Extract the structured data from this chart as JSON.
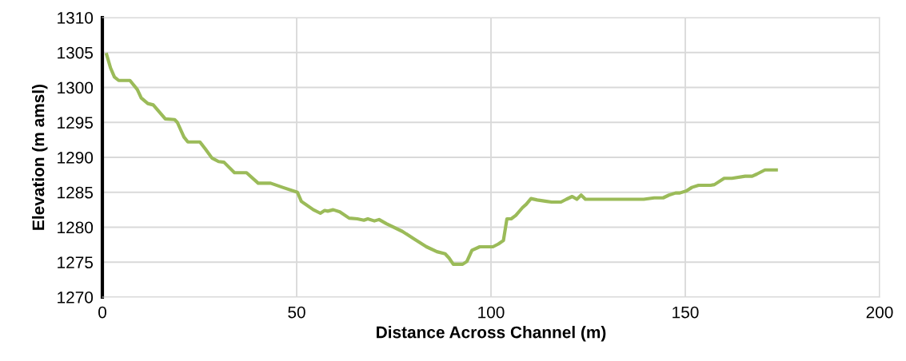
{
  "chart_data": {
    "type": "line",
    "xlabel": "Distance Across Channel (m)",
    "ylabel": "Elevation (m amsl)",
    "xlim": [
      0,
      200
    ],
    "xticks": [
      0,
      50,
      100,
      150,
      200
    ],
    "ylim": [
      1270,
      1310
    ],
    "yticks": [
      1270,
      1275,
      1280,
      1285,
      1290,
      1295,
      1300,
      1305,
      1310
    ],
    "grid": true,
    "series": [
      {
        "color": "#9bbb59",
        "x": [
          1.1,
          2.1,
          3.1,
          4.2,
          7.1,
          9.0,
          10.0,
          11.7,
          13.1,
          16.2,
          18.6,
          19.3,
          21.0,
          22.0,
          25.1,
          26.5,
          28.2,
          29.9,
          31.3,
          34.0,
          37.1,
          40.1,
          43.3,
          46.4,
          50.2,
          51.2,
          54.3,
          56.1,
          57.2,
          58.0,
          59.4,
          61.1,
          63.5,
          65.6,
          67.3,
          68.3,
          70.0,
          71.2,
          73.1,
          77.2,
          80.0,
          83.4,
          86.1,
          88.2,
          89.2,
          90.3,
          92.7,
          93.8,
          95.1,
          97.1,
          100.5,
          101.9,
          103.2,
          104.1,
          105.2,
          106.4,
          108.1,
          109.1,
          110.3,
          111.9,
          114.3,
          115.6,
          118.0,
          119.4,
          120.9,
          122.1,
          123.2,
          124.3,
          139.3,
          142.0,
          144.3,
          145.8,
          147.5,
          148.6,
          150.3,
          151.7,
          153.4,
          156.5,
          157.5,
          160.0,
          162.0,
          165.4,
          167.2,
          168.4,
          170.5,
          173.4
        ],
        "values": [
          1304.7,
          1302.8,
          1301.5,
          1301.0,
          1301.0,
          1299.7,
          1298.5,
          1297.7,
          1297.5,
          1295.5,
          1295.4,
          1295.0,
          1292.9,
          1292.2,
          1292.2,
          1291.2,
          1289.9,
          1289.4,
          1289.3,
          1287.8,
          1287.8,
          1286.3,
          1286.3,
          1285.7,
          1285.0,
          1283.7,
          1282.5,
          1282.0,
          1282.4,
          1282.3,
          1282.5,
          1282.2,
          1281.3,
          1281.2,
          1281.0,
          1281.2,
          1280.9,
          1281.1,
          1280.5,
          1279.4,
          1278.4,
          1277.2,
          1276.5,
          1276.2,
          1275.6,
          1274.7,
          1274.7,
          1275.1,
          1276.7,
          1277.2,
          1277.2,
          1277.6,
          1278.1,
          1281.2,
          1281.2,
          1281.7,
          1282.8,
          1283.3,
          1284.1,
          1283.9,
          1283.7,
          1283.6,
          1283.6,
          1284.0,
          1284.4,
          1284.0,
          1284.6,
          1284.0,
          1284.0,
          1284.2,
          1284.2,
          1284.6,
          1284.9,
          1284.9,
          1285.2,
          1285.7,
          1286.0,
          1286.0,
          1286.1,
          1287.0,
          1287.0,
          1287.3,
          1287.3,
          1287.6,
          1288.2,
          1288.2
        ]
      }
    ]
  }
}
